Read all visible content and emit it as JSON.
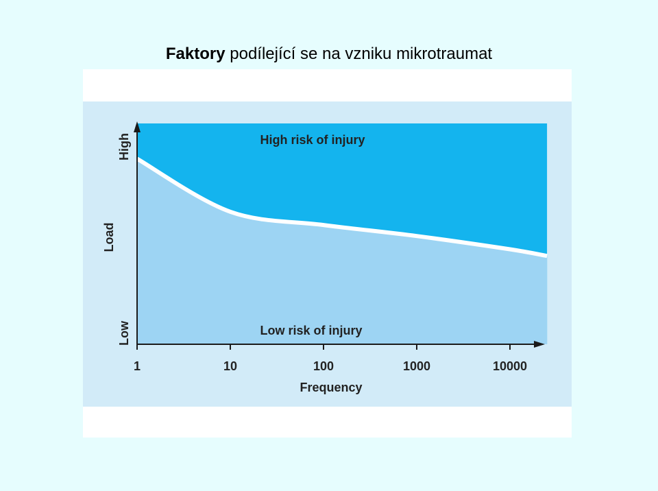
{
  "slide": {
    "title_bold": "Faktory",
    "title_rest": "podílející se na vzniku mikrotraumat"
  },
  "colors": {
    "background": "#e6fdfe",
    "chart_bg": "#d2ebf8",
    "high_risk": "#14b4ee",
    "low_risk": "#9dd4f3",
    "boundary": "#ffffff",
    "axis": "#1a1a1a"
  },
  "chart_data": {
    "type": "area",
    "x_scale": "log",
    "x": [
      1,
      10,
      100,
      1000,
      10000,
      25000
    ],
    "boundary_load": [
      0.84,
      0.6,
      0.54,
      0.49,
      0.43,
      0.4
    ],
    "ylim": [
      0,
      1
    ],
    "xlabel": "Frequency",
    "ylabel": "Load",
    "y_high_label": "High",
    "y_low_label": "Low",
    "xticks": [
      "1",
      "10",
      "100",
      "1000",
      "10000"
    ],
    "regions": {
      "high": "High risk of injury",
      "low": "Low risk of injury"
    }
  }
}
